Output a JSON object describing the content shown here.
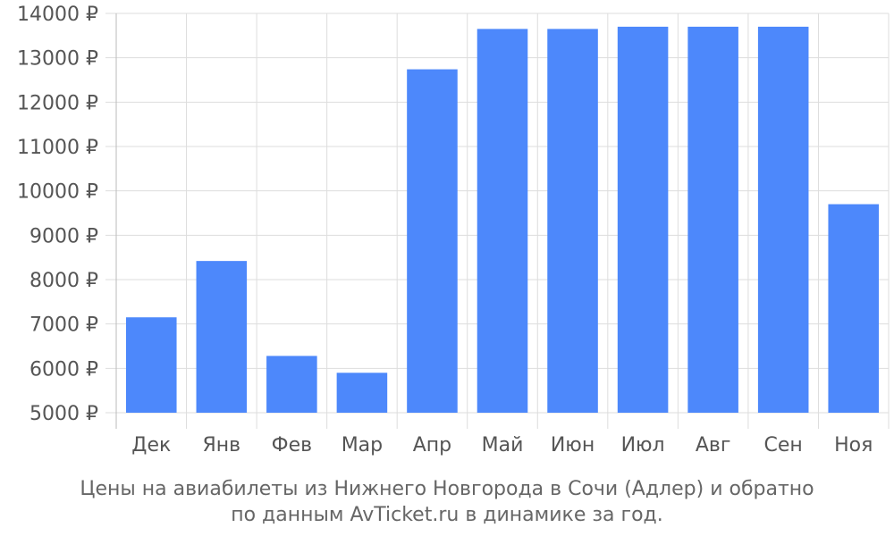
{
  "chart_data": {
    "type": "bar",
    "categories": [
      "Дек",
      "Янв",
      "Фев",
      "Мар",
      "Апр",
      "Май",
      "Июн",
      "Июл",
      "Авг",
      "Сен",
      "Ноя"
    ],
    "values": [
      7150,
      8420,
      6280,
      5900,
      12740,
      13650,
      13650,
      13700,
      13700,
      13700,
      9700
    ],
    "ylim": [
      5000,
      14000
    ],
    "yticks": [
      5000,
      6000,
      7000,
      8000,
      9000,
      10000,
      11000,
      12000,
      13000,
      14000
    ],
    "ytick_labels": [
      "5000 ₽",
      "6000 ₽",
      "7000 ₽",
      "8000 ₽",
      "9000 ₽",
      "10000 ₽",
      "11000 ₽",
      "12000 ₽",
      "13000 ₽",
      "14000 ₽"
    ],
    "grid": true,
    "bar_color": "#4d88fb",
    "caption_line1": "Цены на авиабилеты из Нижнего Новгорода в Сочи (Адлер) и обратно",
    "caption_line2": "по данным AvTicket.ru в динамике за год."
  }
}
